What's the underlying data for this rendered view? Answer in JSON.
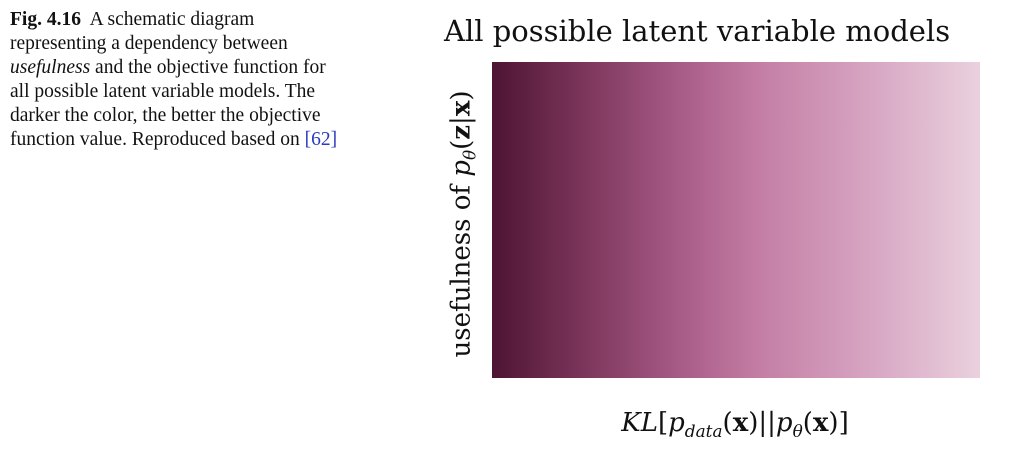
{
  "caption": {
    "label": "Fig. 4.16",
    "text_before": "A schematic diagram representing a dependency between",
    "emphasis": "usefulness",
    "text_after": "and the objective function for all possible latent variable models. The darker the color, the better the objective function value. Reproduced based on",
    "ref_open": "[",
    "ref": "62",
    "ref_close": "]"
  },
  "figure": {
    "title": "All possible latent variable models",
    "y_prefix": "usefulness of",
    "y_p": "p",
    "y_sub": "θ",
    "y_open": "(",
    "y_z": "z",
    "y_bar": "|",
    "y_x": "x",
    "y_close": ")",
    "x_kl": "KL",
    "x_open": "[",
    "x_p1": "p",
    "x_sub1": "data",
    "x_p1open": "(",
    "x_x1": "x",
    "x_p1close": ")",
    "x_sep": "||",
    "x_p2": "p",
    "x_sub2": "θ",
    "x_p2open": "(",
    "x_x2": "x",
    "x_p2close": ")",
    "x_close": "]",
    "gradient_colors": [
      "#4d1433",
      "#7a3459",
      "#a65a86",
      "#c47ea5",
      "#d7a6c3",
      "#ead1de"
    ]
  }
}
